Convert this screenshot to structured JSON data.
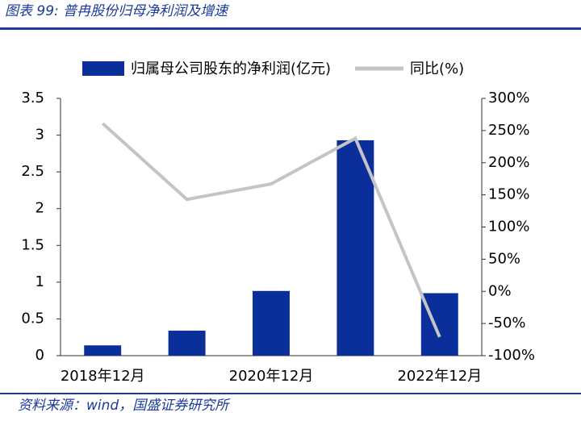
{
  "chart_data": {
    "type": "bar-line",
    "title": "图表 99: 普冉股份归母净利润及增速",
    "source": "资料来源：wind，国盛证券研究所",
    "categories": [
      "2018年12月",
      null,
      "2020年12月",
      null,
      "2022年12月"
    ],
    "series": [
      {
        "name": "归属母公司股东的净利润(亿元)",
        "color": "#0b2f9a",
        "type": "bar",
        "values": [
          0.14,
          0.34,
          0.88,
          2.93,
          0.85
        ]
      },
      {
        "name": "同比(%)",
        "color": "#c4c4c4",
        "type": "line",
        "axis": "y2",
        "values": [
          261,
          143,
          167,
          238,
          -71
        ]
      }
    ],
    "ylim": [
      0,
      3.5
    ],
    "yticks": [
      0,
      0.5,
      1,
      1.5,
      2,
      2.5,
      3,
      3.5
    ],
    "y2lim": [
      -100,
      300
    ],
    "y2ticks": [
      {
        "value": -100,
        "label": "-100%"
      },
      {
        "value": -50,
        "label": "-50%"
      },
      {
        "value": 0,
        "label": "0%"
      },
      {
        "value": 50,
        "label": "50%"
      },
      {
        "value": 100,
        "label": "100%"
      },
      {
        "value": 150,
        "label": "150%"
      },
      {
        "value": 200,
        "label": "200%"
      },
      {
        "value": 250,
        "label": "250%"
      },
      {
        "value": 300,
        "label": "300%"
      }
    ],
    "grid": false
  }
}
